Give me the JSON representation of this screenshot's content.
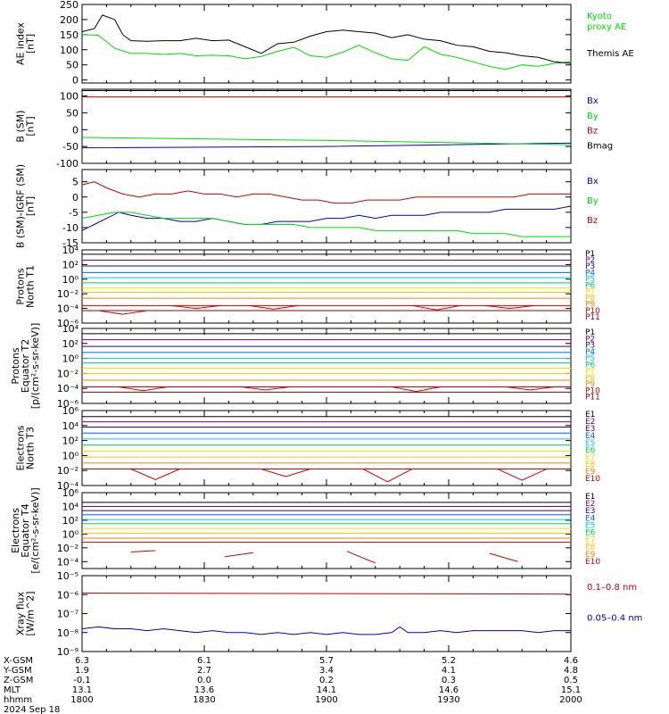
{
  "colors": {
    "black": "#000000",
    "blue": "#0000cc",
    "green": "#00dd00",
    "red": "#cc0000",
    "P1": "#000000",
    "P2": "#7a0080",
    "P3": "#2a00b0",
    "P4": "#0060ff",
    "P5": "#00c8ff",
    "P6": "#00d060",
    "P7": "#f0e000",
    "P8": "#ffc000",
    "P9": "#ff8000",
    "P10": "#d00000",
    "P11": "#900000"
  },
  "x_axis": {
    "ticks": [
      "1800",
      "1830",
      "1900",
      "1930",
      "2000"
    ],
    "rows": [
      {
        "label": "X-GSM",
        "values": [
          "6.3",
          "6.1",
          "5.7",
          "5.2",
          "4.6"
        ]
      },
      {
        "label": "Y-GSM",
        "values": [
          "1.9",
          "2.7",
          "3.4",
          "4.1",
          "4.8"
        ]
      },
      {
        "label": "Z-GSM",
        "values": [
          "-0.1",
          "0.0",
          "0.2",
          "0.3",
          "0.5"
        ]
      },
      {
        "label": "MLT",
        "values": [
          "13.1",
          "13.6",
          "14.1",
          "14.6",
          "15.1"
        ]
      },
      {
        "label": "hhmm",
        "values": [
          "1800",
          "1830",
          "1900",
          "1930",
          "2000"
        ]
      }
    ],
    "date": "2024 Sep 18"
  },
  "chart_data": [
    {
      "type": "line",
      "ylabel": [
        "AE index",
        "[nT]"
      ],
      "ylim": [
        -10,
        250
      ],
      "yticks": [
        "0",
        "50",
        "100",
        "150",
        "200",
        "250"
      ],
      "ytick_values": [
        0,
        50,
        100,
        150,
        200,
        250
      ],
      "series": [
        {
          "name": "Kyoto proxy AE",
          "legend": [
            "Kyoto",
            "proxy AE"
          ],
          "color": "green",
          "x": [
            0,
            4,
            8,
            12,
            16,
            20,
            24,
            28,
            32,
            36,
            40,
            44,
            48,
            52,
            56,
            60,
            64,
            68,
            72,
            76,
            80,
            84,
            88,
            92,
            96,
            100,
            104,
            108,
            112,
            116,
            120
          ],
          "y": [
            150,
            148,
            105,
            88,
            88,
            85,
            88,
            80,
            82,
            80,
            70,
            78,
            95,
            108,
            80,
            75,
            92,
            115,
            90,
            70,
            65,
            110,
            85,
            75,
            60,
            45,
            35,
            50,
            45,
            55,
            60
          ]
        },
        {
          "name": "Themis AE",
          "legend": [
            "Themis AE"
          ],
          "color": "black",
          "x": [
            0,
            3,
            5,
            8,
            10,
            12,
            16,
            20,
            24,
            28,
            32,
            36,
            40,
            44,
            48,
            52,
            56,
            60,
            64,
            68,
            72,
            76,
            80,
            84,
            88,
            92,
            96,
            100,
            104,
            108,
            112,
            116,
            120
          ],
          "y": [
            160,
            170,
            215,
            200,
            150,
            130,
            128,
            130,
            130,
            138,
            130,
            132,
            110,
            88,
            120,
            125,
            145,
            160,
            165,
            160,
            155,
            140,
            150,
            135,
            130,
            115,
            110,
            95,
            90,
            80,
            75,
            60,
            55
          ]
        }
      ]
    },
    {
      "type": "line",
      "ylabel": [
        "B (SM)",
        "[nT]"
      ],
      "ylim": [
        -100,
        120
      ],
      "yticks": [
        "100",
        "50",
        "0",
        "-50",
        "-100"
      ],
      "ytick_values": [
        100,
        50,
        0,
        -50,
        -100
      ],
      "series": [
        {
          "name": "Bx",
          "legend": [
            "Bx"
          ],
          "color": "blue",
          "x": [
            0,
            60,
            90,
            120
          ],
          "y": [
            -54,
            -50,
            -45,
            -40
          ]
        },
        {
          "name": "By",
          "legend": [
            "By"
          ],
          "color": "green",
          "x": [
            0,
            60,
            120
          ],
          "y": [
            -23,
            -32,
            -45
          ]
        },
        {
          "name": "Bz",
          "legend": [
            "Bz"
          ],
          "color": "red",
          "x": [
            0,
            120
          ],
          "y": [
            97,
            97
          ]
        },
        {
          "name": "Bmag",
          "legend": [
            "Bmag"
          ],
          "color": "black",
          "x": [
            0,
            120
          ],
          "y": [
            116,
            116
          ]
        }
      ]
    },
    {
      "type": "line",
      "ylabel": [
        "B (SM)-IGRF (SM)",
        "[nT]"
      ],
      "ylim": [
        -15,
        9
      ],
      "yticks": [
        "5",
        "0",
        "-5",
        "-10",
        "-15"
      ],
      "ytick_values": [
        5,
        0,
        -5,
        -10,
        -15
      ],
      "series": [
        {
          "name": "Bx",
          "legend": [
            "Bx"
          ],
          "color": "blue",
          "x": [
            0,
            3,
            6,
            9,
            12,
            16,
            20,
            24,
            28,
            32,
            36,
            40,
            44,
            48,
            52,
            56,
            60,
            64,
            68,
            72,
            76,
            80,
            84,
            88,
            92,
            96,
            100,
            104,
            108,
            112,
            116,
            120
          ],
          "y": [
            -11,
            -9,
            -7,
            -5,
            -6,
            -7,
            -7,
            -8,
            -8,
            -7,
            -8,
            -9,
            -9,
            -8,
            -8,
            -8,
            -7,
            -7,
            -6,
            -7,
            -6,
            -6,
            -6,
            -5,
            -5,
            -5,
            -5,
            -4,
            -4,
            -4,
            -4,
            -3
          ]
        },
        {
          "name": "By",
          "legend": [
            "By"
          ],
          "color": "green",
          "x": [
            0,
            4,
            8,
            12,
            16,
            20,
            24,
            28,
            32,
            36,
            40,
            44,
            48,
            52,
            56,
            60,
            64,
            68,
            72,
            76,
            80,
            84,
            88,
            92,
            96,
            100,
            104,
            108,
            112,
            116,
            120
          ],
          "y": [
            -7,
            -6,
            -5,
            -5,
            -6,
            -7,
            -7,
            -7,
            -7,
            -8,
            -9,
            -9,
            -9,
            -9,
            -10,
            -10,
            -10,
            -10,
            -11,
            -11,
            -11,
            -11,
            -11,
            -11,
            -12,
            -12,
            -12,
            -13,
            -13,
            -13,
            -13
          ]
        },
        {
          "name": "Bz",
          "legend": [
            "Bz"
          ],
          "color": "red",
          "x": [
            0,
            3,
            6,
            10,
            14,
            18,
            22,
            26,
            30,
            34,
            38,
            42,
            46,
            50,
            54,
            58,
            62,
            66,
            70,
            74,
            78,
            82,
            86,
            90,
            94,
            98,
            102,
            106,
            110,
            114,
            118,
            120
          ],
          "y": [
            4,
            5,
            3,
            1,
            0,
            1,
            1,
            2,
            1,
            1,
            0,
            1,
            1,
            0,
            -1,
            -1,
            -2,
            -2,
            -1,
            -1,
            -1,
            0,
            0,
            0,
            0,
            0,
            0,
            0,
            1,
            1,
            1,
            1
          ]
        }
      ]
    },
    {
      "type": "line",
      "log": true,
      "ylabel": [
        "Protons",
        "North T1"
      ],
      "ylim_exp": [
        -6,
        4
      ],
      "yticks": [
        "10⁴",
        "10²",
        "10⁰",
        "10⁻²",
        "10⁻⁴",
        "10⁻⁶"
      ],
      "ytick_exps": [
        4,
        2,
        0,
        -2,
        -4,
        -6
      ],
      "channels": [
        "P1",
        "P2",
        "P3",
        "P4",
        "P5",
        "P6",
        "P7",
        "P8",
        "P9",
        "P10",
        "P11"
      ],
      "levels_exp": [
        3.4,
        2.6,
        1.8,
        0.9,
        0.2,
        -0.5,
        -1.2,
        -1.8,
        -2.6,
        -3.6,
        -4.3
      ],
      "dips": [
        [
          10,
          -4.3,
          -4.8
        ],
        [
          28,
          -3.6,
          -4.0
        ],
        [
          47,
          -3.6,
          -4.1
        ],
        [
          87,
          -3.6,
          -4.2
        ],
        [
          105,
          -3.6,
          -4.0
        ]
      ]
    },
    {
      "type": "line",
      "log": true,
      "ylabel": [
        "Protons",
        "Equator T2",
        "[p/(cm²-s-sr-keV)]"
      ],
      "ylim_exp": [
        -6,
        4
      ],
      "yticks": [
        "10⁴",
        "10²",
        "10⁰",
        "10⁻²",
        "10⁻⁴",
        "10⁻⁶"
      ],
      "ytick_exps": [
        4,
        2,
        0,
        -2,
        -4,
        -6
      ],
      "channels": [
        "P1",
        "P2",
        "P3",
        "P4",
        "P5",
        "P6",
        "P7",
        "P8",
        "P9",
        "P10",
        "P11"
      ],
      "levels_exp": [
        3.3,
        2.5,
        1.6,
        0.8,
        0.0,
        -0.6,
        -1.3,
        -2.0,
        -2.9,
        -3.8,
        -4.5
      ],
      "dips": [
        [
          15,
          -3.8,
          -4.3
        ],
        [
          45,
          -3.8,
          -4.2
        ],
        [
          82,
          -3.8,
          -4.4
        ],
        [
          110,
          -3.8,
          -4.2
        ]
      ]
    },
    {
      "type": "line",
      "log": true,
      "ylabel": [
        "Electrons",
        "North T3"
      ],
      "ylim_exp": [
        -4,
        6
      ],
      "yticks": [
        "10⁶",
        "10⁴",
        "10²",
        "10⁰",
        "10⁻²",
        "10⁻⁴"
      ],
      "ytick_exps": [
        6,
        4,
        2,
        0,
        -2,
        -4
      ],
      "channels": [
        "E1",
        "E2",
        "E3",
        "E4",
        "E5",
        "E6",
        "E7",
        "E8",
        "E9",
        "E10"
      ],
      "levels_exp": [
        5.2,
        4.5,
        3.8,
        3.0,
        2.2,
        1.4,
        0.6,
        -0.2,
        -1.0,
        -1.8
      ],
      "dips": [
        [
          18,
          -1.8,
          -3.2
        ],
        [
          50,
          -1.8,
          -2.8
        ],
        [
          75,
          -1.8,
          -3.5
        ],
        [
          108,
          -1.8,
          -3.3
        ]
      ]
    },
    {
      "type": "line",
      "log": true,
      "ylabel": [
        "Electrons",
        "Equator T4",
        "[e/(cm²-s-sr-keV)]"
      ],
      "ylim_exp": [
        -5,
        6
      ],
      "yticks": [
        "10⁶",
        "10⁴",
        "10²",
        "10⁰",
        "10⁻²",
        "10⁻⁴"
      ],
      "ytick_exps": [
        6,
        4,
        2,
        0,
        -2,
        -4
      ],
      "channels": [
        "E1",
        "E2",
        "E3",
        "E4",
        "E5",
        "E6",
        "E7",
        "E8",
        "E9",
        "E10"
      ],
      "levels_exp": [
        4.6,
        4.0,
        3.4,
        2.8,
        2.1,
        1.5,
        0.8,
        0.1,
        -0.6,
        -1.2
      ],
      "fragments": [
        [
          [
            12,
            -2.6
          ],
          [
            18,
            -2.4
          ]
        ],
        [
          [
            35,
            -3.3
          ],
          [
            42,
            -2.7
          ]
        ],
        [
          [
            65,
            -2.5
          ],
          [
            72,
            -4.2
          ]
        ],
        [
          [
            100,
            -2.8
          ],
          [
            107,
            -4.0
          ]
        ]
      ]
    },
    {
      "type": "line",
      "log": true,
      "ylabel": [
        "Xray flux",
        "[W/m^2]"
      ],
      "ylim_exp": [
        -9,
        -5
      ],
      "yticks": [
        "10⁻⁵",
        "10⁻⁶",
        "10⁻⁷",
        "10⁻⁸",
        "10⁻⁹"
      ],
      "ytick_exps": [
        -5,
        -6,
        -7,
        -8,
        -9
      ],
      "series": [
        {
          "name": "0.1–0.8 nm",
          "legend": [
            "0.1–0.8 nm"
          ],
          "color": "red",
          "x": [
            0,
            120
          ],
          "y_exp": [
            -5.92,
            -5.97
          ]
        },
        {
          "name": "0.05–0.4 nm",
          "legend": [
            "0.05–0.4 nm"
          ],
          "color": "blue",
          "x": [
            0,
            4,
            8,
            12,
            16,
            20,
            24,
            28,
            32,
            36,
            40,
            44,
            48,
            52,
            56,
            60,
            64,
            68,
            72,
            76,
            78,
            80,
            84,
            88,
            92,
            96,
            100,
            104,
            108,
            112,
            116,
            120
          ],
          "y_exp": [
            -7.8,
            -7.7,
            -7.8,
            -7.8,
            -7.9,
            -7.8,
            -7.9,
            -8.0,
            -7.9,
            -8.0,
            -8.0,
            -8.1,
            -8.0,
            -8.1,
            -8.0,
            -8.1,
            -8.0,
            -8.1,
            -8.1,
            -8.0,
            -7.7,
            -8.0,
            -8.0,
            -7.9,
            -8.0,
            -7.9,
            -7.9,
            -7.9,
            -7.9,
            -8.0,
            -7.9,
            -7.9
          ]
        }
      ]
    }
  ]
}
